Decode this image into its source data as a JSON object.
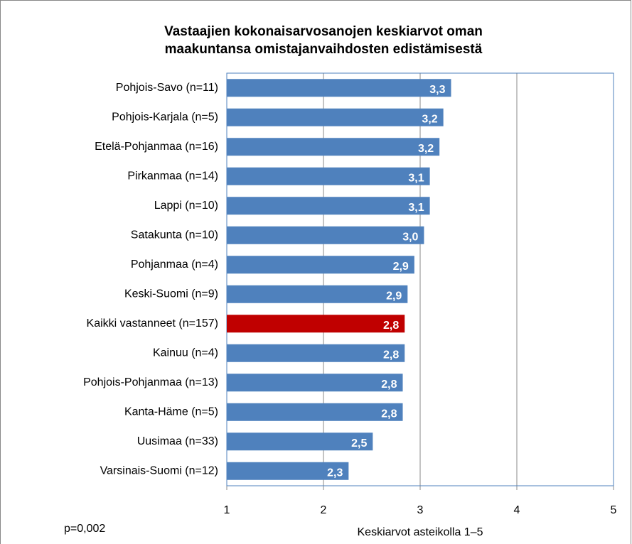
{
  "chart_data": {
    "type": "barh",
    "title": [
      "Vastaajien kokonaisarvosanojen keskiarvot oman",
      "maakuntansa omistajanvaihdosten edistämisestä"
    ],
    "categories": [
      "Pohjois-Savo (n=11)",
      "Pohjois-Karjala (n=5)",
      "Etelä-Pohjanmaa (n=16)",
      "Pirkanmaa (n=14)",
      "Lappi (n=10)",
      "Satakunta (n=10)",
      "Pohjanmaa (n=4)",
      "Keski-Suomi (n=9)",
      "Kaikki vastanneet (n=157)",
      "Kainuu (n=4)",
      "Pohjois-Pohjanmaa (n=13)",
      "Kanta-Häme (n=5)",
      "Uusimaa (n=33)",
      "Varsinais-Suomi (n=12)"
    ],
    "values": [
      3.32,
      3.24,
      3.2,
      3.1,
      3.1,
      3.04,
      2.94,
      2.87,
      2.84,
      2.84,
      2.82,
      2.82,
      2.51,
      2.26
    ],
    "value_labels": [
      "3,3",
      "3,2",
      "3,2",
      "3,1",
      "3,1",
      "3,0",
      "2,9",
      "2,9",
      "2,8",
      "2,8",
      "2,8",
      "2,8",
      "2,5",
      "2,3"
    ],
    "colors": [
      "#4f81bd",
      "#4f81bd",
      "#4f81bd",
      "#4f81bd",
      "#4f81bd",
      "#4f81bd",
      "#4f81bd",
      "#4f81bd",
      "#c00000",
      "#4f81bd",
      "#4f81bd",
      "#4f81bd",
      "#4f81bd",
      "#4f81bd"
    ],
    "xlim": [
      1,
      5
    ],
    "xticks": [
      1,
      2,
      3,
      4,
      5
    ],
    "grid": true,
    "xlabel": "Keskiarvot asteikolla 1–5",
    "note": "p=0,002"
  }
}
